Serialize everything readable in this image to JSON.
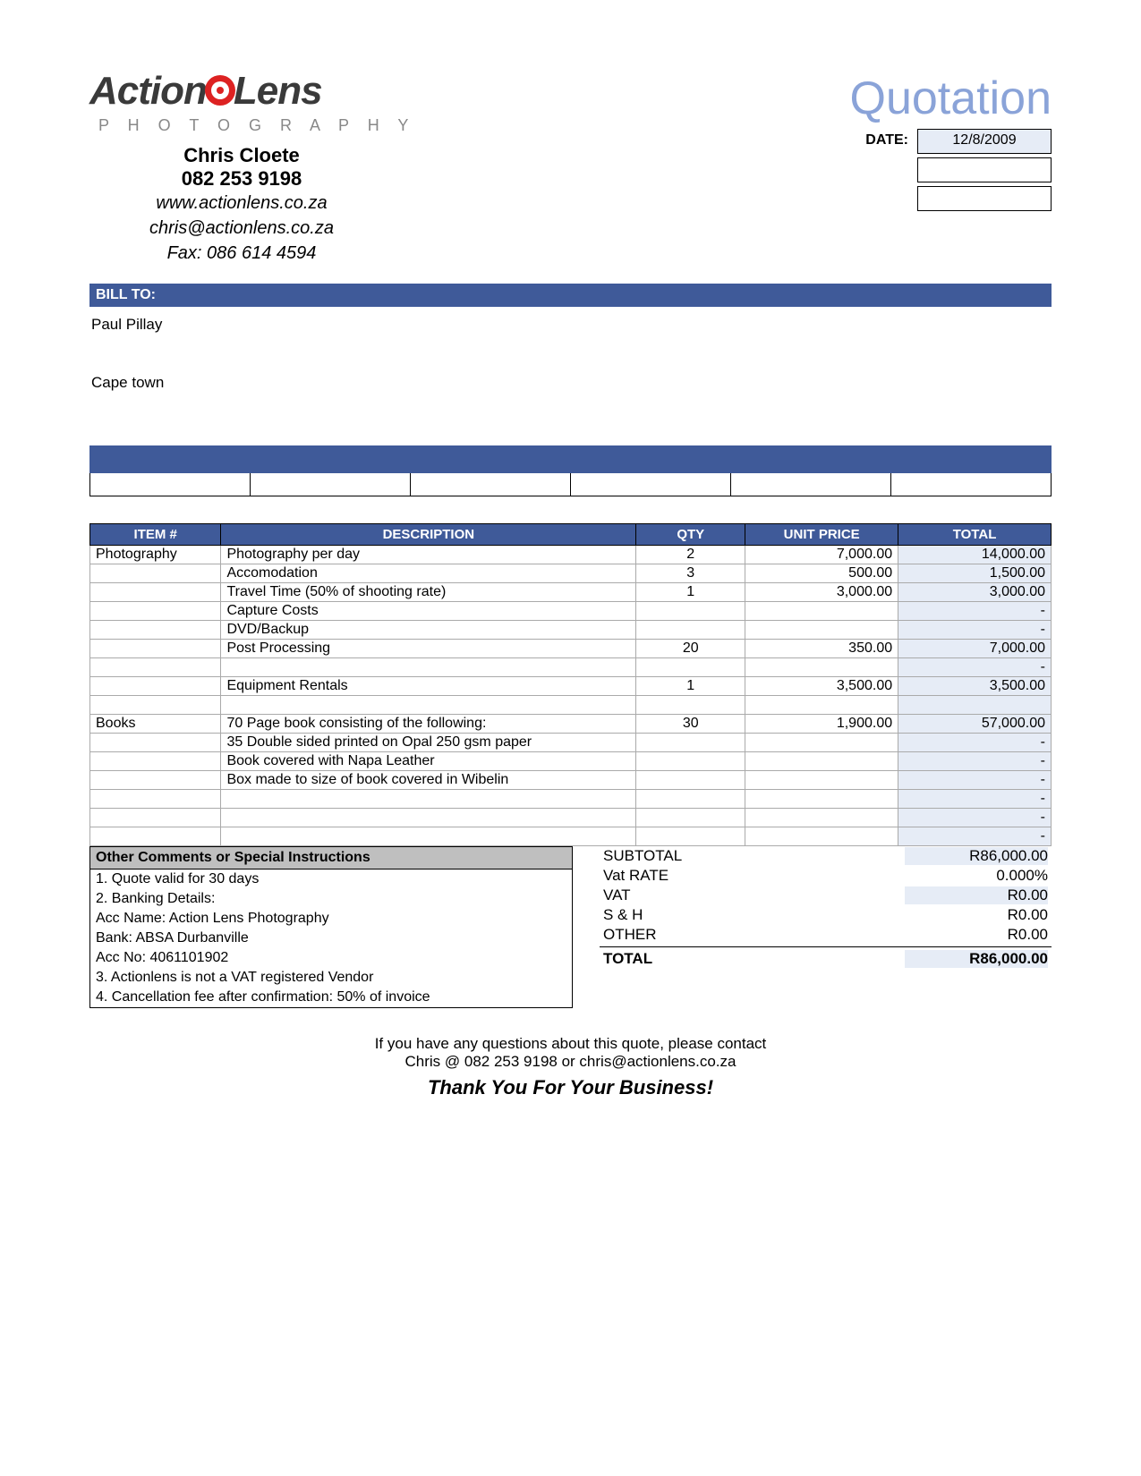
{
  "logo": {
    "word1": "Action",
    "word2": "Lens",
    "subtitle": "P H O T O G R A P H Y"
  },
  "contact": {
    "name": "Chris Cloete",
    "phone": "082 253 9198",
    "web": "www.actionlens.co.za",
    "email": "chris@actionlens.co.za",
    "fax": "Fax: 086 614 4594"
  },
  "doc": {
    "title": "Quotation",
    "date_label": "DATE:",
    "date_value": "12/8/2009"
  },
  "bill": {
    "header": "BILL TO:",
    "name": "Paul Pillay",
    "city": "Cape town"
  },
  "columns": {
    "item": "ITEM #",
    "desc": "DESCRIPTION",
    "qty": "QTY",
    "unit": "UNIT PRICE",
    "total": "TOTAL"
  },
  "rows": [
    {
      "item": "Photography",
      "desc": "Photography per day",
      "qty": "2",
      "unit": "7,000.00",
      "total": "14,000.00"
    },
    {
      "item": "",
      "desc": "Accomodation",
      "qty": "3",
      "unit": "500.00",
      "total": "1,500.00"
    },
    {
      "item": "",
      "desc": "Travel Time (50% of shooting rate)",
      "qty": "1",
      "unit": "3,000.00",
      "total": "3,000.00"
    },
    {
      "item": "",
      "desc": "Capture Costs",
      "qty": "",
      "unit": "",
      "total": "-"
    },
    {
      "item": "",
      "desc": "DVD/Backup",
      "qty": "",
      "unit": "",
      "total": "-"
    },
    {
      "item": "",
      "desc": "Post Processing",
      "qty": "20",
      "unit": "350.00",
      "total": "7,000.00"
    },
    {
      "item": "",
      "desc": "",
      "qty": "",
      "unit": "",
      "total": "-"
    },
    {
      "item": "",
      "desc": "Equipment Rentals",
      "qty": "1",
      "unit": "3,500.00",
      "total": "3,500.00"
    },
    {
      "item": "",
      "desc": "",
      "qty": "",
      "unit": "",
      "total": ""
    },
    {
      "item": "Books",
      "desc": "70 Page book consisting of the following:",
      "qty": "30",
      "unit": "1,900.00",
      "total": "57,000.00"
    },
    {
      "item": "",
      "desc": "35 Double sided printed on Opal 250 gsm paper",
      "qty": "",
      "unit": "",
      "total": "-"
    },
    {
      "item": "",
      "desc": "Book covered with Napa Leather",
      "qty": "",
      "unit": "",
      "total": "-"
    },
    {
      "item": "",
      "desc": "Box made to size of book covered in Wibelin",
      "qty": "",
      "unit": "",
      "total": "-"
    },
    {
      "item": "",
      "desc": "",
      "qty": "",
      "unit": "",
      "total": "-"
    },
    {
      "item": "",
      "desc": "",
      "qty": "",
      "unit": "",
      "total": "-"
    },
    {
      "item": "",
      "desc": "",
      "qty": "",
      "unit": "",
      "total": "-"
    }
  ],
  "totals": {
    "subtotal_label": "SUBTOTAL",
    "subtotal": "R86,000.00",
    "vatrate_label": "Vat RATE",
    "vatrate": "0.000%",
    "vat_label": "VAT",
    "vat": "R0.00",
    "sh_label": "S & H",
    "sh": "R0.00",
    "other_label": "OTHER",
    "other": "R0.00",
    "total_label": "TOTAL",
    "total": "R86,000.00"
  },
  "comments": {
    "header": "Other Comments or Special Instructions",
    "lines": [
      "1. Quote valid for 30 days",
      "2. Banking Details:",
      "Acc Name: Action Lens Photography",
      "Bank: ABSA Durbanville",
      "Acc No: 4061101902",
      "3. Actionlens is not a VAT registered Vendor",
      "4. Cancellation fee after confirmation: 50% of invoice"
    ]
  },
  "footer": {
    "line1": "If you have any questions about this quote, please contact",
    "line2": "Chris @ 082 253 9198 or chris@actionlens.co.za",
    "thanks": "Thank You For Your Business!"
  },
  "style": {
    "brand_blue": "#3f5a99",
    "tint_blue": "#e6ecf6",
    "title_blue": "#8aa3d8",
    "grey_fill": "#bfbfbf"
  }
}
